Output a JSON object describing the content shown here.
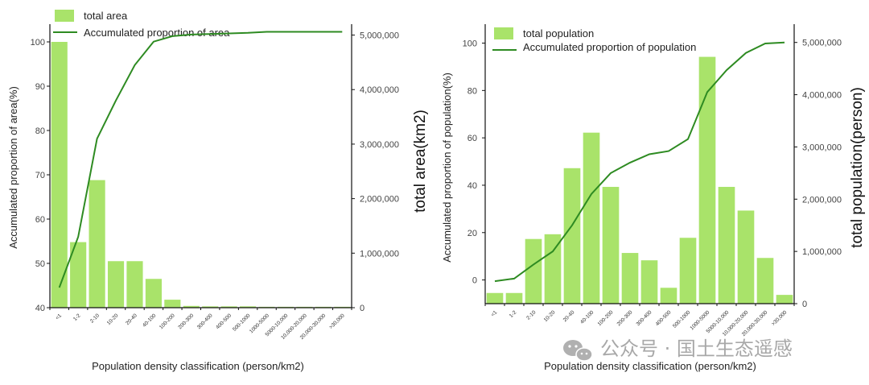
{
  "colors": {
    "bar": "#a9e36a",
    "line": "#2e8b22",
    "axis": "#111111",
    "watermark": "#9a9a9a"
  },
  "watermark": {
    "text": "公众号 · 国土生态遥感",
    "icon": "wechat-icon"
  },
  "chart_data": [
    {
      "type": "bar",
      "title": "",
      "legend": {
        "bar_label": "total area",
        "line_label": "Accumulated proportion of area",
        "placement": "top-left"
      },
      "xlabel": "Population density classification (person/km2)",
      "ylabel": "Accumulated proportion of area(%)",
      "y2label": "total area(km2)",
      "ylim": [
        40,
        104
      ],
      "yticks": [
        40,
        50,
        60,
        70,
        80,
        90,
        100
      ],
      "y2lim": [
        0,
        5200000
      ],
      "y2ticks": [
        0,
        1000000,
        2000000,
        3000000,
        4000000,
        5000000
      ],
      "y2tick_labels": [
        "0",
        "1,000,000",
        "2,000,000",
        "3,000,000",
        "4,000,000",
        "5,000,000"
      ],
      "categories": [
        "<1",
        "1-2",
        "2-10",
        "10-20",
        "20-40",
        "40-100",
        "100-200",
        "200-300",
        "300-400",
        "400-500",
        "500-1000",
        "1000-5000",
        "5000-10,000",
        "10,000-20,000",
        "20,000-30,000",
        ">30,000"
      ],
      "series": [
        {
          "name": "total area",
          "kind": "bar",
          "axis": "left",
          "values": [
            100,
            54.8,
            68.8,
            50.5,
            50.5,
            46.5,
            41.8,
            40.4,
            40.3,
            40.3,
            40.3,
            40.2,
            40.2,
            40.2,
            40.2,
            40.2
          ]
        },
        {
          "name": "Accumulated proportion of area",
          "kind": "line",
          "axis": "right",
          "values": [
            370000,
            1300000,
            3100000,
            3800000,
            4450000,
            4880000,
            4980000,
            5010000,
            5020000,
            5030000,
            5040000,
            5060000,
            5060000,
            5060000,
            5060000,
            5060000
          ]
        }
      ]
    },
    {
      "type": "bar",
      "title": "",
      "legend": {
        "bar_label": "total population",
        "line_label": "Accumulated proportion of population",
        "placement": "top-left"
      },
      "xlabel": "Population density classification (person/km2)",
      "ylabel": "Accumulated proportion of population(%)",
      "y2label": "total population(person)",
      "ylim": [
        -10,
        108
      ],
      "yticks": [
        0,
        20,
        40,
        60,
        80,
        100
      ],
      "y2lim": [
        0,
        5350000
      ],
      "y2ticks": [
        0,
        1000000,
        2000000,
        3000000,
        4000000,
        5000000
      ],
      "y2tick_labels": [
        "0",
        "1,000,000",
        "2,000,000",
        "3,000,000",
        "4,000,000",
        "5,000,000"
      ],
      "categories": [
        "<1",
        "1-2",
        "2-10",
        "10-20",
        "20-40",
        "40-100",
        "100-200",
        "200-300",
        "300-400",
        "400-500",
        "500-1000",
        "1000-5000",
        "5000-10,000",
        "10,000-20,000",
        "20,000-30,000",
        ">30,000"
      ],
      "series": [
        {
          "name": "total population",
          "kind": "bar",
          "axis": "left",
          "values": [
            -5.5,
            -5.5,
            17.3,
            19.3,
            47.2,
            62.2,
            39.3,
            11.4,
            8.3,
            -3.3,
            17.8,
            94.2,
            39.3,
            29.3,
            9.3,
            -6.3
          ]
        },
        {
          "name": "Accumulated proportion of population",
          "kind": "line",
          "axis": "right",
          "values": [
            430000,
            480000,
            750000,
            1000000,
            1500000,
            2100000,
            2500000,
            2700000,
            2860000,
            2920000,
            3150000,
            4050000,
            4470000,
            4800000,
            4980000,
            5000000
          ]
        }
      ]
    }
  ]
}
